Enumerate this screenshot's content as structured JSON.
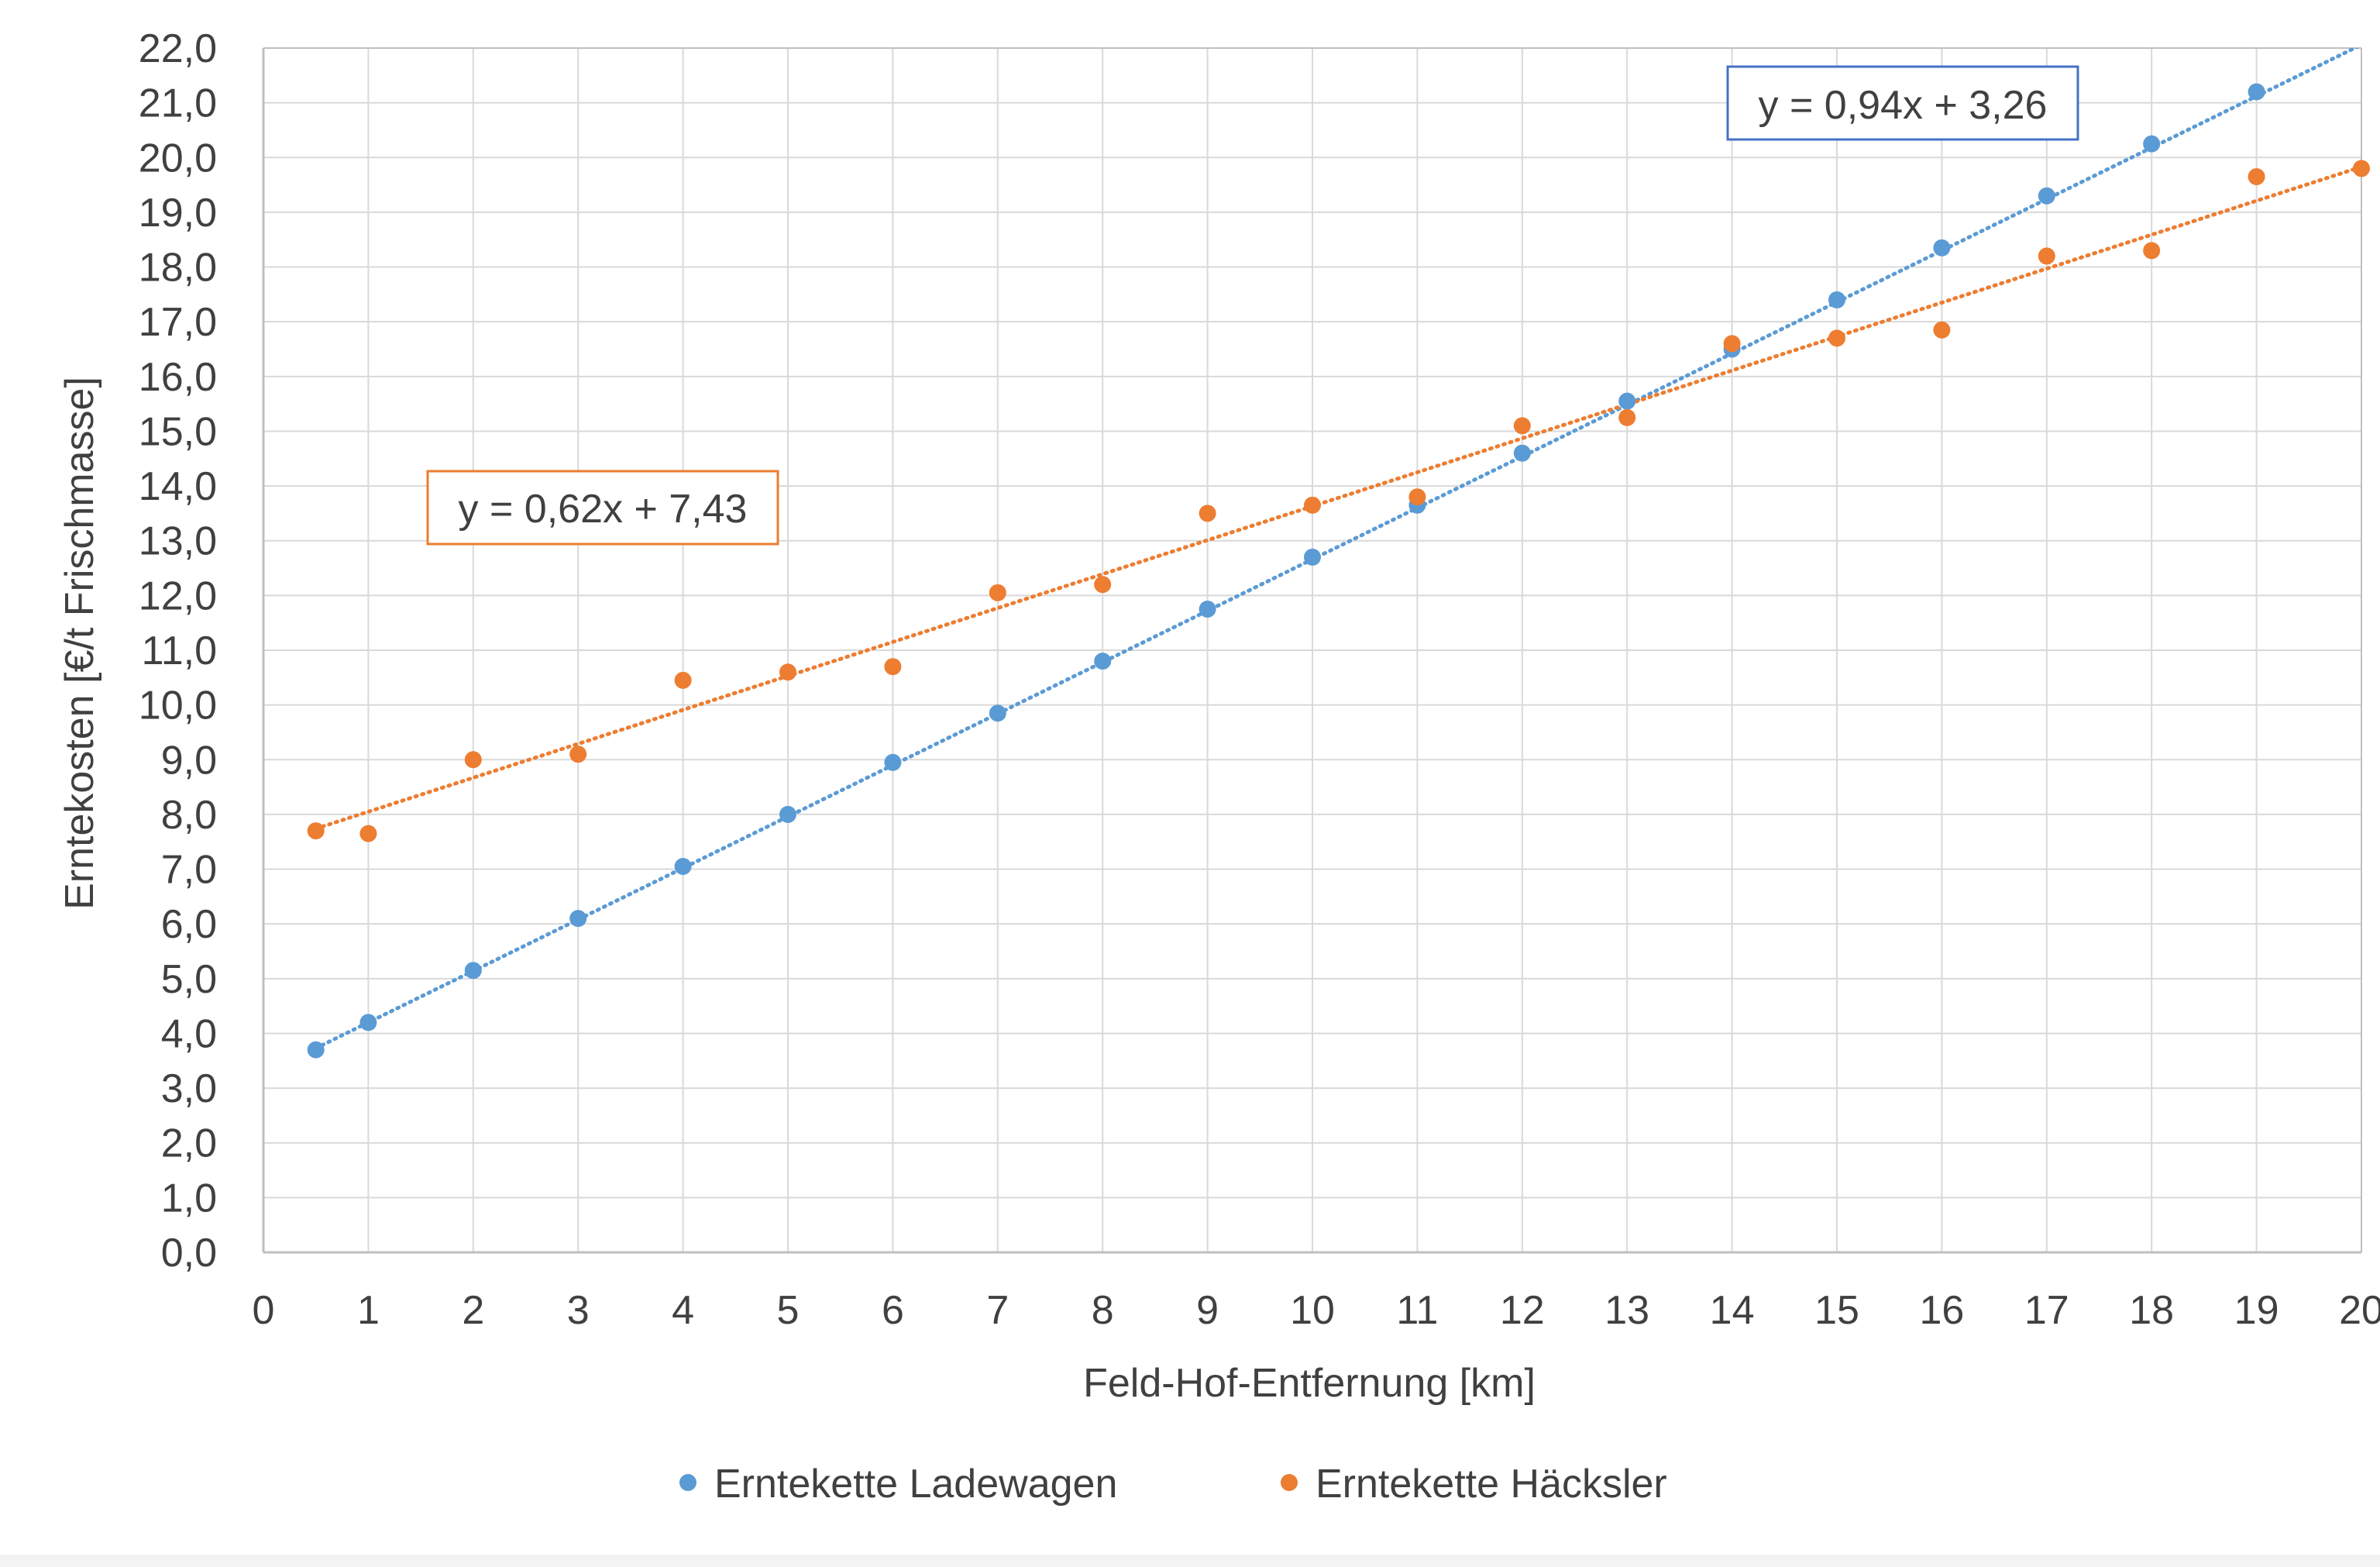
{
  "chart_data": {
    "type": "scatter",
    "title": "",
    "xlabel": "Feld-Hof-Entfernung [km]",
    "ylabel": "Erntekosten [€/t Frischmasse]",
    "xlim": [
      0,
      20
    ],
    "ylim": [
      0,
      22
    ],
    "x_ticks": [
      "0",
      "1",
      "2",
      "3",
      "4",
      "5",
      "6",
      "7",
      "8",
      "9",
      "10",
      "11",
      "12",
      "13",
      "14",
      "15",
      "16",
      "17",
      "18",
      "19",
      "20"
    ],
    "y_ticks": [
      "0,0",
      "1,0",
      "2,0",
      "3,0",
      "4,0",
      "5,0",
      "6,0",
      "7,0",
      "8,0",
      "9,0",
      "10,0",
      "11,0",
      "12,0",
      "13,0",
      "14,0",
      "15,0",
      "16,0",
      "17,0",
      "18,0",
      "19,0",
      "20,0",
      "21,0",
      "22,0"
    ],
    "grid": true,
    "legend_position": "bottom",
    "series": [
      {
        "name": "Erntekette Ladewagen",
        "color": "#5b9bd5",
        "x": [
          0.5,
          1,
          2,
          3,
          4,
          5,
          6,
          7,
          8,
          9,
          10,
          11,
          12,
          13,
          14,
          15,
          16,
          17,
          18,
          19
        ],
        "y": [
          3.7,
          4.2,
          5.15,
          6.1,
          7.05,
          8.0,
          8.95,
          9.85,
          10.8,
          11.75,
          12.7,
          13.65,
          14.6,
          15.55,
          16.5,
          17.4,
          18.35,
          19.3,
          20.25,
          21.2
        ],
        "trendline": {
          "slope": 0.94,
          "intercept": 3.26,
          "x_range": [
            0.5,
            20
          ],
          "label": "y = 0,94x + 3,26"
        }
      },
      {
        "name": "Erntekette Häcksler",
        "color": "#ed7d31",
        "x": [
          0.5,
          1,
          2,
          3,
          4,
          5,
          6,
          7,
          8,
          9,
          10,
          11,
          12,
          13,
          14,
          15,
          16,
          17,
          18,
          19,
          20
        ],
        "y": [
          7.7,
          7.65,
          9.0,
          9.1,
          10.45,
          10.6,
          10.7,
          12.05,
          12.2,
          13.5,
          13.65,
          13.8,
          15.1,
          15.25,
          16.6,
          16.7,
          16.85,
          18.2,
          18.3,
          19.65,
          19.8
        ],
        "trendline": {
          "slope": 0.62,
          "intercept": 7.43,
          "x_range": [
            0.5,
            20
          ],
          "label": "y = 0,62x + 7,43"
        }
      }
    ]
  }
}
